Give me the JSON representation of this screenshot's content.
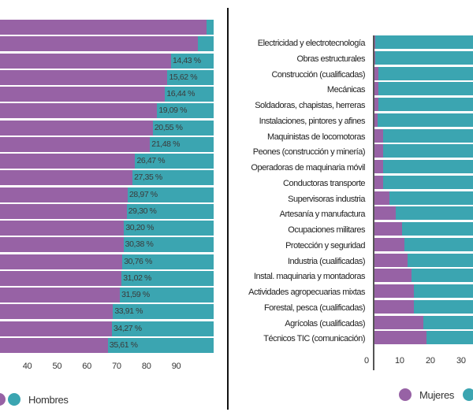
{
  "colors": {
    "mujeres": "#9762a5",
    "hombres": "#3ba5b1"
  },
  "chart_data": [
    {
      "type": "bar",
      "stacked": true,
      "orientation": "horizontal",
      "xlim": [
        0,
        100
      ],
      "xticks": [
        "40",
        "50",
        "60",
        "70",
        "80",
        "90"
      ],
      "legend": {
        "placement": "bottom",
        "entries": [
          "Hombres"
        ]
      },
      "series": [
        {
          "name": "Hombres",
          "values": [
            2.5,
            5.4,
            14.43,
            15.62,
            16.44,
            19.09,
            20.55,
            21.48,
            26.47,
            27.35,
            28.97,
            29.3,
            30.2,
            30.38,
            30.76,
            31.02,
            31.59,
            33.91,
            34.27,
            35.61
          ]
        }
      ],
      "data_labels": [
        "",
        "",
        "14,43 %",
        "15,62 %",
        "16,44 %",
        "19,09 %",
        "20,55 %",
        "21,48 %",
        "26,47 %",
        "27,35 %",
        "28,97 %",
        "29,30 %",
        "30,20 %",
        "30,38 %",
        "30,76 %",
        "31,02 %",
        "31,59 %",
        "33,91 %",
        "34,27 %",
        "35,61 %"
      ]
    },
    {
      "type": "bar",
      "stacked": true,
      "orientation": "horizontal",
      "xlim": [
        0,
        100
      ],
      "xticks": [
        "0",
        "10",
        "20",
        "30"
      ],
      "legend": {
        "placement": "bottom",
        "entries": [
          "Mujeres",
          "Hombres"
        ]
      },
      "categories": [
        "Electricidad y electrotecnología",
        "Obras estructurales",
        "Construcción (cualificadas)",
        "Mecánicas",
        "Soldadoras, chapistas, herreras",
        "Instalaciones, pintores y afines",
        "Maquinistas de locomotoras",
        "Peones (construcción y minería)",
        "Operadoras de maquinaria móvil",
        "Conductoras transporte",
        "Supervisoras industria",
        "Artesanía y manufactura",
        "Ocupaciones militares",
        "Protección y seguridad",
        "Industria (cualificadas)",
        "Instal. maquinaria y montadoras",
        "Actividades agropecuarias mixtas",
        "Forestal, pesca (cualificadas)",
        "Agrícolas (cualificadas)",
        "Técnicos TIC (comunicación)"
      ],
      "series": [
        {
          "name": "Mujeres",
          "values": [
            0.2,
            0.3,
            1.3,
            1.3,
            1.3,
            1.0,
            2.8,
            2.8,
            2.8,
            2.8,
            4.9,
            6.9,
            9.0,
            9.7,
            10.8,
            12.0,
            12.8,
            12.8,
            15.9,
            16.9
          ]
        }
      ]
    }
  ],
  "legend_left": {
    "hombres": "Hombres"
  },
  "legend_right": {
    "mujeres": "Mujeres"
  }
}
